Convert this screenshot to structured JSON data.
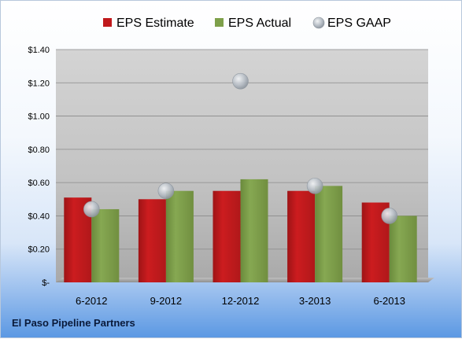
{
  "chart_data": {
    "type": "bar",
    "categories": [
      "6-2012",
      "9-2012",
      "12-2012",
      "3-2013",
      "6-2013"
    ],
    "series": [
      {
        "name": "EPS Estimate",
        "type": "bar",
        "color": "#c0191c",
        "values": [
          0.51,
          0.5,
          0.55,
          0.55,
          0.48
        ]
      },
      {
        "name": "EPS Actual",
        "type": "bar",
        "color": "#7ea04a",
        "values": [
          0.44,
          0.55,
          0.62,
          0.58,
          0.4
        ]
      },
      {
        "name": "EPS GAAP",
        "type": "scatter",
        "color": "#b9c0c8",
        "values": [
          0.44,
          0.55,
          1.21,
          0.58,
          0.4
        ]
      }
    ],
    "y_ticks": [
      {
        "value": 0,
        "label": "$-"
      },
      {
        "value": 0.2,
        "label": "$0.20"
      },
      {
        "value": 0.4,
        "label": "$0.40"
      },
      {
        "value": 0.6,
        "label": "$0.60"
      },
      {
        "value": 0.8,
        "label": "$0.80"
      },
      {
        "value": 1.0,
        "label": "$1.00"
      },
      {
        "value": 1.2,
        "label": "$1.20"
      },
      {
        "value": 1.4,
        "label": "$1.40"
      }
    ],
    "ylim": [
      0,
      1.4
    ],
    "grid": true,
    "legend_position": "top",
    "title": "",
    "xlabel": "",
    "ylabel": ""
  },
  "company_name": "El Paso Pipeline Partners"
}
